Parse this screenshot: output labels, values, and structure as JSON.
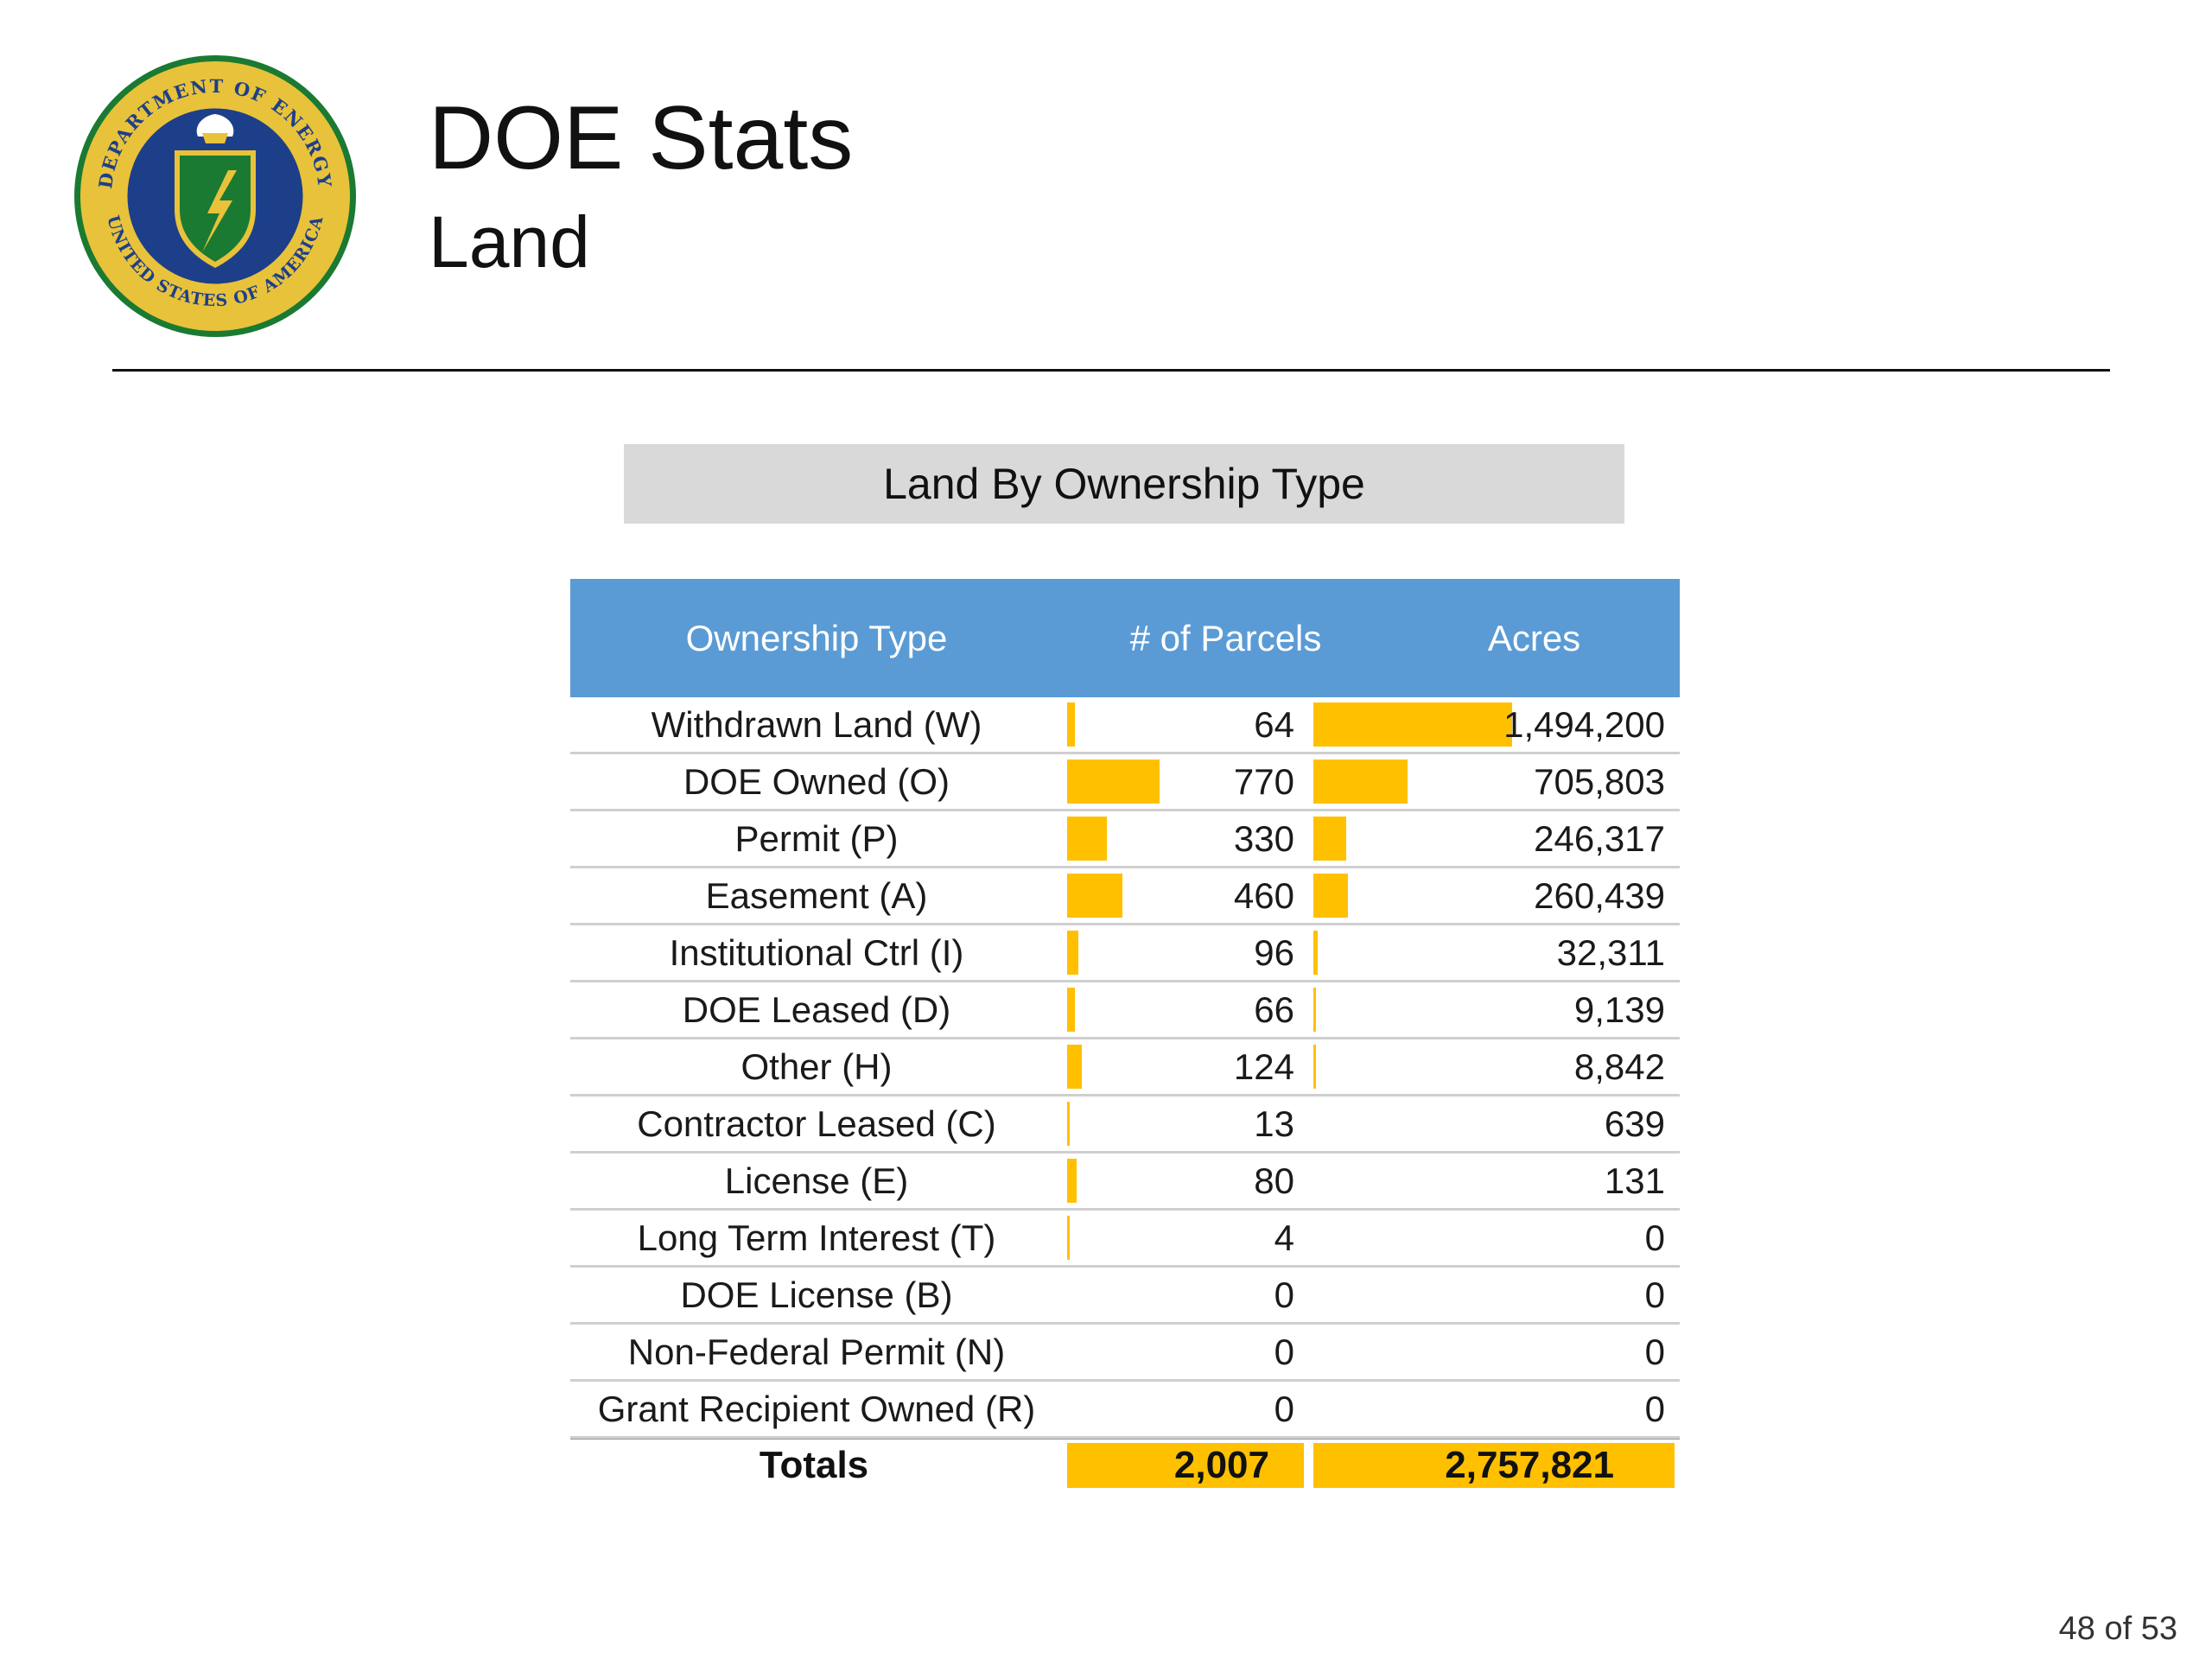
{
  "header": {
    "title": "DOE Stats",
    "subtitle": "Land",
    "seal_top_text": "DEPARTMENT OF ENERGY",
    "seal_bottom_text": "UNITED STATES OF AMERICA"
  },
  "colors": {
    "header_blue": "#5b9bd5",
    "bar_gold": "#ffc000",
    "banner_gray": "#d9d9d9"
  },
  "chart_data": {
    "type": "table",
    "title": "Land By Ownership Type",
    "columns": [
      "Ownership Type",
      "# of Parcels",
      "Acres"
    ],
    "rows": [
      {
        "type": "Withdrawn Land (W)",
        "parcels": "64",
        "acres": "1,494,200",
        "parcels_value": 64,
        "acres_value": 1494200
      },
      {
        "type": "DOE Owned (O)",
        "parcels": "770",
        "acres": "705,803",
        "parcels_value": 770,
        "acres_value": 705803
      },
      {
        "type": "Permit (P)",
        "parcels": "330",
        "acres": "246,317",
        "parcels_value": 330,
        "acres_value": 246317
      },
      {
        "type": "Easement (A)",
        "parcels": "460",
        "acres": "260,439",
        "parcels_value": 460,
        "acres_value": 260439
      },
      {
        "type": "Institutional Ctrl (I)",
        "parcels": "96",
        "acres": "32,311",
        "parcels_value": 96,
        "acres_value": 32311
      },
      {
        "type": "DOE Leased (D)",
        "parcels": "66",
        "acres": "9,139",
        "parcels_value": 66,
        "acres_value": 9139
      },
      {
        "type": "Other (H)",
        "parcels": "124",
        "acres": "8,842",
        "parcels_value": 124,
        "acres_value": 8842
      },
      {
        "type": "Contractor Leased (C)",
        "parcels": "13",
        "acres": "639",
        "parcels_value": 13,
        "acres_value": 639
      },
      {
        "type": "License (E)",
        "parcels": "80",
        "acres": "131",
        "parcels_value": 80,
        "acres_value": 131
      },
      {
        "type": "Long Term Interest (T)",
        "parcels": "4",
        "acres": "0",
        "parcels_value": 4,
        "acres_value": 0
      },
      {
        "type": "DOE License (B)",
        "parcels": "0",
        "acres": "0",
        "parcels_value": 0,
        "acres_value": 0
      },
      {
        "type": "Non-Federal Permit (N)",
        "parcels": "0",
        "acres": "0",
        "parcels_value": 0,
        "acres_value": 0
      },
      {
        "type": "Grant Recipient Owned (R)",
        "parcels": "0",
        "acres": "0",
        "parcels_value": 0,
        "acres_value": 0
      }
    ],
    "totals": {
      "label": "Totals",
      "parcels": "2,007",
      "acres": "2,757,821"
    }
  },
  "footer": {
    "page": "48 of 53"
  }
}
